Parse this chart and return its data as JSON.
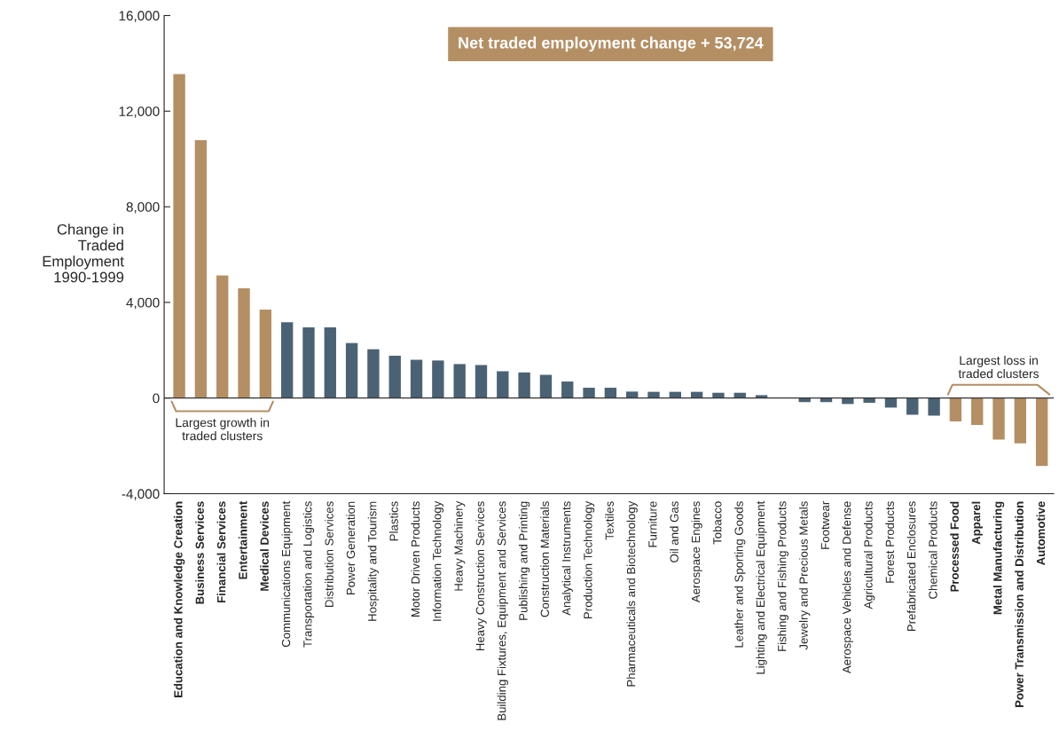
{
  "chart_data": {
    "type": "bar",
    "ylabel": "Change in\nTraded\nEmployment\n1990-1999",
    "categories": [
      "Education and Knowledge Creation",
      "Business Services",
      "Financial Services",
      "Entertainment",
      "Medical Devices",
      "Communications Equipment",
      "Transportation and Logistics",
      "Distribution Services",
      "Power Generation",
      "Hospitality and Tourism",
      "Plastics",
      "Motor Driven Products",
      "Information Technology",
      "Heavy Machinery",
      "Heavy Construction Services",
      "Building Fixtures, Equipment and Services",
      "Publishing and Printing",
      "Construction Materials",
      "Analytical Instruments",
      "Production Technology",
      "Textiles",
      "Pharmaceuticals and Biotechnology",
      "Furniture",
      "Oil and Gas",
      "Aerospace Engines",
      "Tobacco",
      "Leather and Sporting Goods",
      "Lighting and Electrical Equipment",
      "Fishing and Fishing Products",
      "Jewelry and Precious Metals",
      "Footwear",
      "Aerospace Vehicles and Defense",
      "Agricultural Products",
      "Forest Products",
      "Prefabricated Enclosures",
      "Chemical Products",
      "Processed Food",
      "Apparel",
      "Metal Manufacturing",
      "Power Transmission and Distribution",
      "Automotive"
    ],
    "values": [
      13550,
      10790,
      5130,
      4590,
      3700,
      3170,
      2960,
      2960,
      2300,
      2040,
      1770,
      1600,
      1570,
      1420,
      1380,
      1120,
      1070,
      970,
      690,
      430,
      430,
      270,
      260,
      260,
      260,
      220,
      220,
      120,
      0,
      -170,
      -170,
      -250,
      -200,
      -400,
      -700,
      -740,
      -980,
      -1130,
      -1740,
      -1900,
      -2840
    ],
    "colors": [
      "#b48f64",
      "#b48f64",
      "#b48f64",
      "#b48f64",
      "#b48f64",
      "#4a6274",
      "#4a6274",
      "#4a6274",
      "#4a6274",
      "#4a6274",
      "#4a6274",
      "#4a6274",
      "#4a6274",
      "#4a6274",
      "#4a6274",
      "#4a6274",
      "#4a6274",
      "#4a6274",
      "#4a6274",
      "#4a6274",
      "#4a6274",
      "#4a6274",
      "#4a6274",
      "#4a6274",
      "#4a6274",
      "#4a6274",
      "#4a6274",
      "#4a6274",
      "#4a6274",
      "#4a6274",
      "#4a6274",
      "#4a6274",
      "#4a6274",
      "#4a6274",
      "#4a6274",
      "#4a6274",
      "#b48f64",
      "#b48f64",
      "#b48f64",
      "#b48f64",
      "#b48f64"
    ],
    "ylim": [
      -4000,
      16000
    ],
    "yticks": [
      {
        "value": -4000,
        "label": "-4,000"
      },
      {
        "value": 0,
        "label": "0"
      },
      {
        "value": 4000,
        "label": "4,000"
      },
      {
        "value": 8000,
        "label": "8,000"
      },
      {
        "value": 12000,
        "label": "12,000"
      },
      {
        "value": 16000,
        "label": "16,000"
      }
    ],
    "ref_lines": [
      {
        "axis": "y",
        "value": 0,
        "color": "#333333"
      }
    ],
    "grid": false,
    "legend": false,
    "annotations": [
      "Net traded employment change + 53,724",
      "Largest growth in\ntraded clusters",
      "Largest loss in\ntraded clusters"
    ]
  }
}
